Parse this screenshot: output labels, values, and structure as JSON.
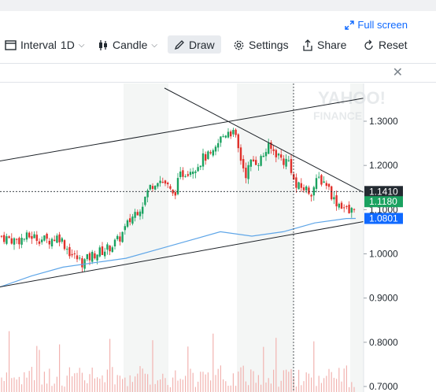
{
  "header": {
    "fullscreen_label": "Full screen"
  },
  "toolbar": {
    "interval_label": "Interval",
    "interval_value": "1D",
    "chart_type_label": "Candle",
    "draw_label": "Draw",
    "settings_label": "Settings",
    "share_label": "Share",
    "reset_label": "Reset"
  },
  "icons": {
    "fullscreen": "expand-arrows-icon",
    "interval": "calendar-icon",
    "candle": "candle-icon",
    "draw": "pencil-icon",
    "settings": "gear-icon",
    "share": "share-icon",
    "reset": "reset-icon",
    "close": "close-icon"
  },
  "watermark": [
    "YAHOO!",
    "FINANCE"
  ],
  "chart_data": {
    "type": "candlestick",
    "y_ticks": [
      "1.3000",
      "1.2000",
      "1.1000",
      "1.0000",
      "0.9000",
      "0.8000",
      "0.7000"
    ],
    "ylim": [
      0.69,
      1.37
    ],
    "price_labels": [
      {
        "value": "1.1410",
        "color": "#232a31"
      },
      {
        "value": "1.1180",
        "color": "#1aa260"
      },
      {
        "value": "1.0801",
        "color": "#0f69ff"
      }
    ],
    "moving_average_color": "#5fa6e8",
    "up_color": "#1aa260",
    "down_color": "#e0312b",
    "volume_color": "#f2b3b0",
    "crosshair_price": 1.141,
    "trendlines": [
      {
        "from": [
          -0.5,
          1.21
        ],
        "to": [
          462,
          1.352
        ]
      },
      {
        "from": [
          209,
          1.375
        ],
        "to": [
          462,
          1.139
        ]
      },
      {
        "from": [
          -0.5,
          0.925
        ],
        "to": [
          462,
          1.073
        ]
      }
    ],
    "vertical_crosshair_x": 373,
    "shaded_bands": [
      [
        157,
        214
      ],
      [
        301,
        373
      ],
      [
        445,
        462
      ]
    ],
    "close_path": [
      [
        0,
        1.04
      ],
      [
        20,
        1.03
      ],
      [
        40,
        1.04
      ],
      [
        60,
        1.03
      ],
      [
        75,
        1.04
      ],
      [
        90,
        1.0
      ],
      [
        105,
        0.98
      ],
      [
        120,
        1.0
      ],
      [
        135,
        1.01
      ],
      [
        150,
        1.03
      ],
      [
        160,
        1.06
      ],
      [
        170,
        1.09
      ],
      [
        180,
        1.11
      ],
      [
        190,
        1.15
      ],
      [
        200,
        1.17
      ],
      [
        210,
        1.16
      ],
      [
        220,
        1.13
      ],
      [
        230,
        1.18
      ],
      [
        240,
        1.19
      ],
      [
        250,
        1.2
      ],
      [
        260,
        1.22
      ],
      [
        270,
        1.22
      ],
      [
        280,
        1.26
      ],
      [
        290,
        1.28
      ],
      [
        298,
        1.27
      ],
      [
        305,
        1.22
      ],
      [
        312,
        1.18
      ],
      [
        320,
        1.21
      ],
      [
        330,
        1.21
      ],
      [
        340,
        1.24
      ],
      [
        350,
        1.23
      ],
      [
        360,
        1.21
      ],
      [
        368,
        1.21
      ],
      [
        375,
        1.15
      ],
      [
        385,
        1.15
      ],
      [
        395,
        1.14
      ],
      [
        405,
        1.17
      ],
      [
        415,
        1.16
      ],
      [
        425,
        1.12
      ],
      [
        435,
        1.11
      ],
      [
        445,
        1.09
      ],
      [
        452,
        1.118
      ]
    ],
    "ma_path": [
      [
        0,
        0.925
      ],
      [
        40,
        0.95
      ],
      [
        80,
        0.97
      ],
      [
        120,
        0.98
      ],
      [
        160,
        0.99
      ],
      [
        200,
        1.01
      ],
      [
        240,
        1.03
      ],
      [
        280,
        1.05
      ],
      [
        320,
        1.04
      ],
      [
        360,
        1.05
      ],
      [
        400,
        1.07
      ],
      [
        440,
        1.08
      ],
      [
        452,
        1.0801
      ]
    ]
  }
}
